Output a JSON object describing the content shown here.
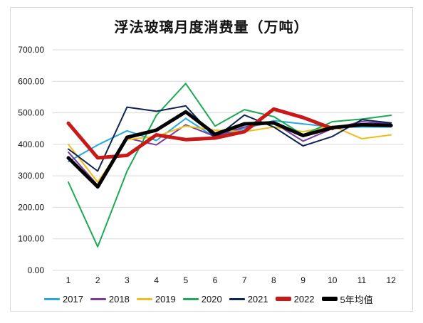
{
  "chart_data": {
    "type": "line",
    "title": "浮法玻璃月度消费量（万吨）",
    "xlabel": "",
    "ylabel": "",
    "categories": [
      "1",
      "2",
      "3",
      "4",
      "5",
      "6",
      "7",
      "8",
      "9",
      "10",
      "11",
      "12"
    ],
    "ylim": [
      0,
      700
    ],
    "yticks": [
      "0.00",
      "100.00",
      "200.00",
      "300.00",
      "400.00",
      "500.00",
      "600.00",
      "700.00"
    ],
    "grid": true,
    "legend_position": "bottom",
    "series": [
      {
        "name": "2017",
        "color": "#2aa9dc",
        "values": [
          345,
          398,
          443,
          412,
          482,
          422,
          450,
          475,
          465,
          455,
          455,
          455
        ]
      },
      {
        "name": "2018",
        "color": "#7a3c9c",
        "values": [
          375,
          270,
          420,
          398,
          462,
          425,
          455,
          468,
          410,
          450,
          472,
          465
        ]
      },
      {
        "name": "2019",
        "color": "#f2bc1a",
        "values": [
          400,
          280,
          415,
          425,
          458,
          445,
          440,
          455,
          440,
          458,
          418,
          430
        ]
      },
      {
        "name": "2020",
        "color": "#1daa55",
        "values": [
          280,
          75,
          315,
          492,
          593,
          458,
          510,
          488,
          430,
          472,
          480,
          492
        ]
      },
      {
        "name": "2021",
        "color": "#0d2553",
        "values": [
          385,
          315,
          518,
          505,
          522,
          420,
          493,
          455,
          395,
          425,
          478,
          468
        ]
      },
      {
        "name": "2022",
        "color": "#c91818",
        "values": [
          467,
          357,
          365,
          430,
          415,
          420,
          440,
          512,
          485,
          450,
          null,
          null
        ]
      },
      {
        "name": "5年均值",
        "color": "#000000",
        "values": [
          357,
          265,
          422,
          445,
          503,
          432,
          465,
          468,
          428,
          453,
          462,
          460
        ]
      }
    ]
  }
}
